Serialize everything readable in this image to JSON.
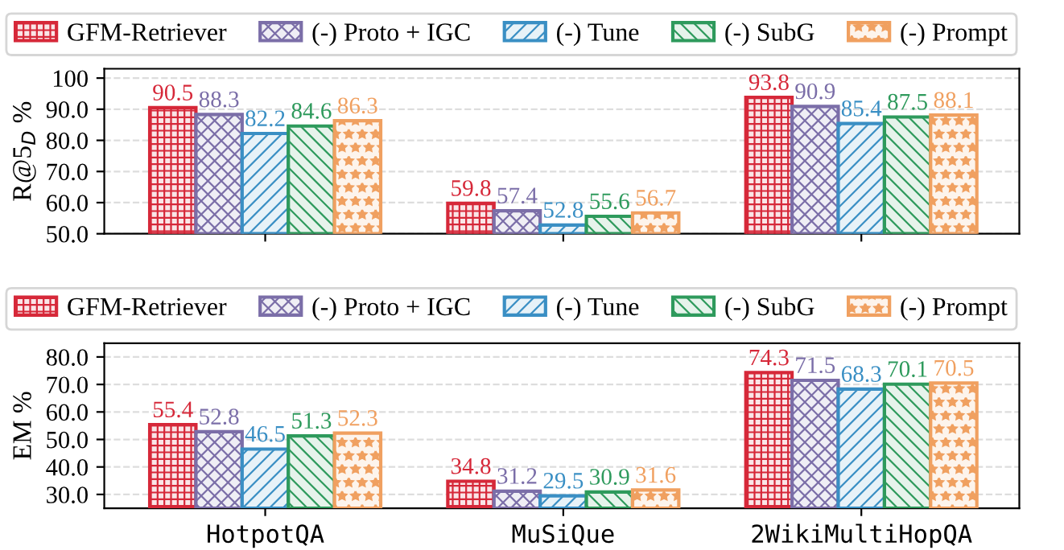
{
  "chart_data": [
    {
      "type": "bar",
      "categories": [
        null,
        null,
        null
      ],
      "ylabel": "R@5$_{D}$ %",
      "ylim": [
        50,
        103
      ],
      "yticks": [
        {
          "value": 50,
          "label": "50.0"
        },
        {
          "value": 60,
          "label": "60.0"
        },
        {
          "value": 70,
          "label": "70.0"
        },
        {
          "value": 80,
          "label": "80.0"
        },
        {
          "value": 90,
          "label": "90.0"
        },
        {
          "value": 100,
          "label": "100"
        }
      ],
      "series": [
        {
          "name": "GFM-Retriever",
          "color": "#d62839",
          "values": [
            90.5,
            59.8,
            93.8
          ]
        },
        {
          "name": "(-) Proto + IGC",
          "color": "#7b6ea8",
          "values": [
            88.3,
            57.4,
            90.9
          ]
        },
        {
          "name": "(-) Tune",
          "color": "#3a8fc4",
          "values": [
            82.2,
            52.8,
            85.4
          ]
        },
        {
          "name": "(-) SubG",
          "color": "#2e9a5c",
          "values": [
            84.6,
            55.6,
            87.5
          ]
        },
        {
          "name": "(-) Prompt",
          "color": "#f0a060",
          "values": [
            86.3,
            56.7,
            88.1
          ]
        }
      ],
      "data_labels": true,
      "grid": "y",
      "legend": "top"
    },
    {
      "type": "bar",
      "categories": [
        "HotpotQA",
        "MuSiQue",
        "2WikiMultiHopQA"
      ],
      "ylabel": "EM %",
      "ylim": [
        25,
        85
      ],
      "yticks": [
        {
          "value": 30,
          "label": "30.0"
        },
        {
          "value": 40,
          "label": "40.0"
        },
        {
          "value": 50,
          "label": "50.0"
        },
        {
          "value": 60,
          "label": "60.0"
        },
        {
          "value": 70,
          "label": "70.0"
        },
        {
          "value": 80,
          "label": "80.0"
        }
      ],
      "series": [
        {
          "name": "GFM-Retriever",
          "color": "#d62839",
          "values": [
            55.4,
            34.8,
            74.3
          ]
        },
        {
          "name": "(-) Proto + IGC",
          "color": "#7b6ea8",
          "values": [
            52.8,
            31.2,
            71.5
          ]
        },
        {
          "name": "(-) Tune",
          "color": "#3a8fc4",
          "values": [
            46.5,
            29.5,
            68.3
          ]
        },
        {
          "name": "(-) SubG",
          "color": "#2e9a5c",
          "values": [
            51.3,
            30.9,
            70.1
          ]
        },
        {
          "name": "(-) Prompt",
          "color": "#f0a060",
          "values": [
            52.3,
            31.6,
            70.5
          ]
        }
      ],
      "data_labels": true,
      "grid": "y",
      "legend": "top"
    }
  ]
}
